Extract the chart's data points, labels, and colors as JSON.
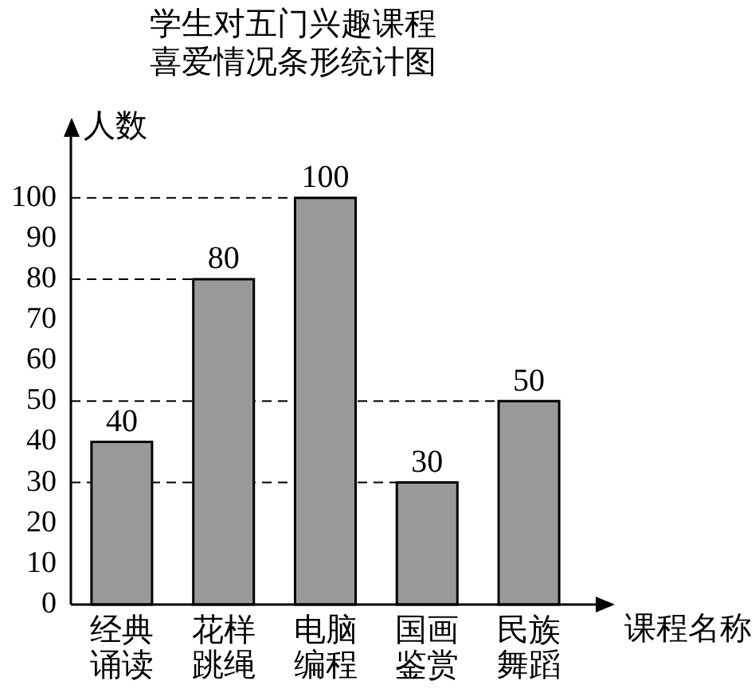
{
  "chart_data": {
    "type": "bar",
    "title": "学生对五门兴趣课程喜爱情况条形统计图",
    "ylabel": "人数",
    "xlabel": "课程名称",
    "categories": [
      "经典诵读",
      "花样跳绳",
      "电脑编程",
      "国画鉴赏",
      "民族舞蹈"
    ],
    "values": [
      40,
      80,
      100,
      30,
      50
    ],
    "color": "#999999",
    "ylim": [
      0,
      115
    ],
    "yticks": [
      0,
      10,
      20,
      30,
      40,
      50,
      60,
      70,
      80,
      90,
      100
    ],
    "grid": false,
    "legend": false,
    "data_labels": true,
    "ref_lines": [
      {
        "axis": "y",
        "value": 100,
        "line_style": "dashed"
      },
      {
        "axis": "y",
        "value": 80,
        "line_style": "dashed"
      },
      {
        "axis": "y",
        "value": 50,
        "line_style": "dashed"
      },
      {
        "axis": "y",
        "value": 30,
        "line_style": "dashed"
      }
    ]
  }
}
